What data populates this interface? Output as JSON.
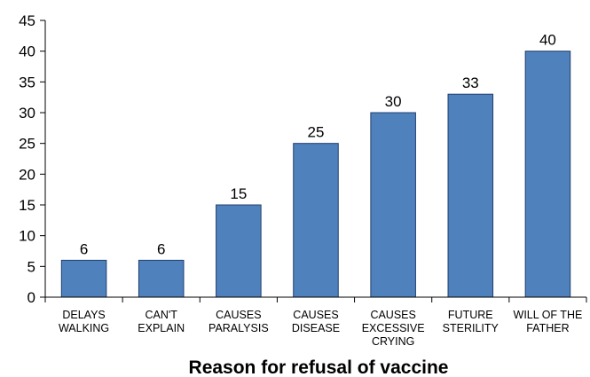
{
  "chart_data": {
    "type": "bar",
    "title": "",
    "xlabel": "Reason for refusal of vaccine",
    "ylabel": "",
    "ylim": [
      0,
      45
    ],
    "yticks": [
      0,
      5,
      10,
      15,
      20,
      25,
      30,
      35,
      40,
      45
    ],
    "categories": [
      [
        "DELAYS",
        "WALKING"
      ],
      [
        "CAN'T",
        "EXPLAIN"
      ],
      [
        "CAUSES",
        "PARALYSIS"
      ],
      [
        "CAUSES",
        "DISEASE"
      ],
      [
        "CAUSES",
        "EXCESSIVE",
        "CRYING"
      ],
      [
        "FUTURE",
        "STERILITY"
      ],
      [
        "WILL OF THE",
        "FATHER"
      ]
    ],
    "values": [
      6,
      6,
      15,
      25,
      30,
      33,
      40
    ],
    "data_labels": [
      "6",
      "6",
      "15",
      "25",
      "30",
      "33",
      "40"
    ],
    "bar_color": "#4f81bd",
    "bar_edge_color": "#1f3f6e",
    "grid": false,
    "legend": "none"
  }
}
